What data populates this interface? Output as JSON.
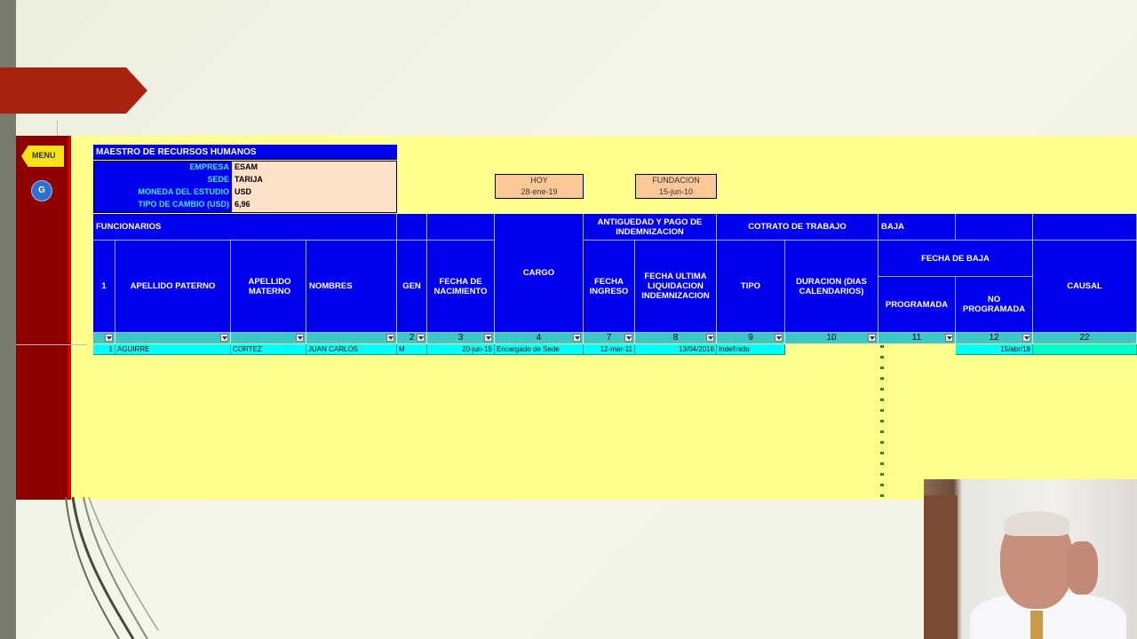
{
  "sheet": {
    "title": "MAESTRO DE RECURSOS HUMANOS",
    "info": [
      {
        "label": "EMPRESA",
        "value": "ESAM"
      },
      {
        "label": "SEDE",
        "value": "TARIJA"
      },
      {
        "label": "MONEDA DEL ESTUDIO",
        "value": "USD"
      },
      {
        "label": "TIPO DE CAMBIO (USD)",
        "value": "6,96"
      }
    ],
    "hoy_label": "HOY",
    "hoy_value": "28-ene-19",
    "fundacion_label": "FUNDACION",
    "fundacion_value": "15-jun-10"
  },
  "nav": {
    "menu_label": "MENU",
    "g_label": "G"
  },
  "groups": {
    "funcionarios": "FUNCIONARIOS",
    "antiguedad": "ANTIGUEDAD Y PAGO DE INDEMNIZACION",
    "contrato": "COTRATO DE TRABAJO",
    "baja": "BAJA",
    "fecha_baja": "FECHA DE BAJA"
  },
  "columns": {
    "num": "1",
    "apellido_paterno": "APELLIDO PATERNO",
    "apellido_materno": "APELLIDO MATERNO",
    "nombres": "NOMBRES",
    "gen": "GEN",
    "fecha_nacimiento": "FECHA DE NACIMIENTO",
    "cargo": "CARGO",
    "fecha_ingreso": "FECHA INGRESO",
    "fecha_ultima": "FECHA ULTIMA LIQUIDACION INDEMNIZACION",
    "tipo": "TIPO",
    "duracion": "DURACION (DIAS CALENDARIOS)",
    "programada": "PROGRAMADA",
    "no_programada": "NO PROGRAMADA",
    "causal": "CAUSAL"
  },
  "filter_row": {
    "gen": "2",
    "fecha_nacimiento": "3",
    "cargo": "4",
    "fecha_ingreso": "7",
    "fecha_ultima": "8",
    "tipo": "9",
    "duracion": "10",
    "programada": "11",
    "no_programada": "12",
    "causal": "22"
  },
  "row": {
    "num": "1",
    "apellido_paterno": "AGUIRRE",
    "apellido_materno": "CORTEZ",
    "nombres": "JUAN CARLOS",
    "gen": "M",
    "fecha_nacimiento": "20-jun-15",
    "cargo": "Encargado de Sede",
    "fecha_ingreso": "12-mar-11",
    "fecha_ultima": "13/04/2016",
    "tipo": "Indefinido",
    "no_programada": "15/abr/18"
  },
  "colors": {
    "header_blue": "#0000ee",
    "sheet_yellow": "#fefe8c",
    "sidebar_red": "#8e0000",
    "filter_teal": "#3cc8c8",
    "data_cyan": "#00ffff"
  }
}
